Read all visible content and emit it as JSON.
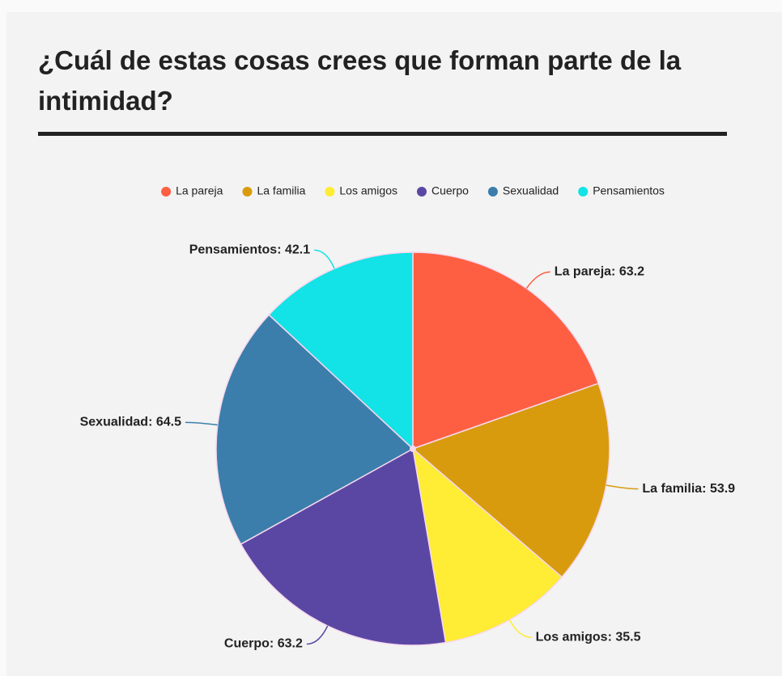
{
  "chart_data": {
    "type": "pie",
    "title": "¿Cuál de estas cosas crees que forman parte de la intimidad?",
    "categories": [
      "La pareja",
      "La familia",
      "Los amigos",
      "Cuerpo",
      "Sexualidad",
      "Pensamientos"
    ],
    "values": [
      63.2,
      53.9,
      35.5,
      63.2,
      64.5,
      42.1
    ],
    "value_labels": [
      "La pareja: 63.2",
      "La familia: 53.9",
      "Los amigos: 35.5",
      "Cuerpo: 63.2",
      "Sexualidad: 64.5",
      "Pensamientos: 42.1"
    ],
    "colors": [
      "#fe5f43",
      "#d99b0e",
      "#feec35",
      "#5a47a4",
      "#3b7eab",
      "#13e2e6"
    ],
    "legend": "top"
  }
}
